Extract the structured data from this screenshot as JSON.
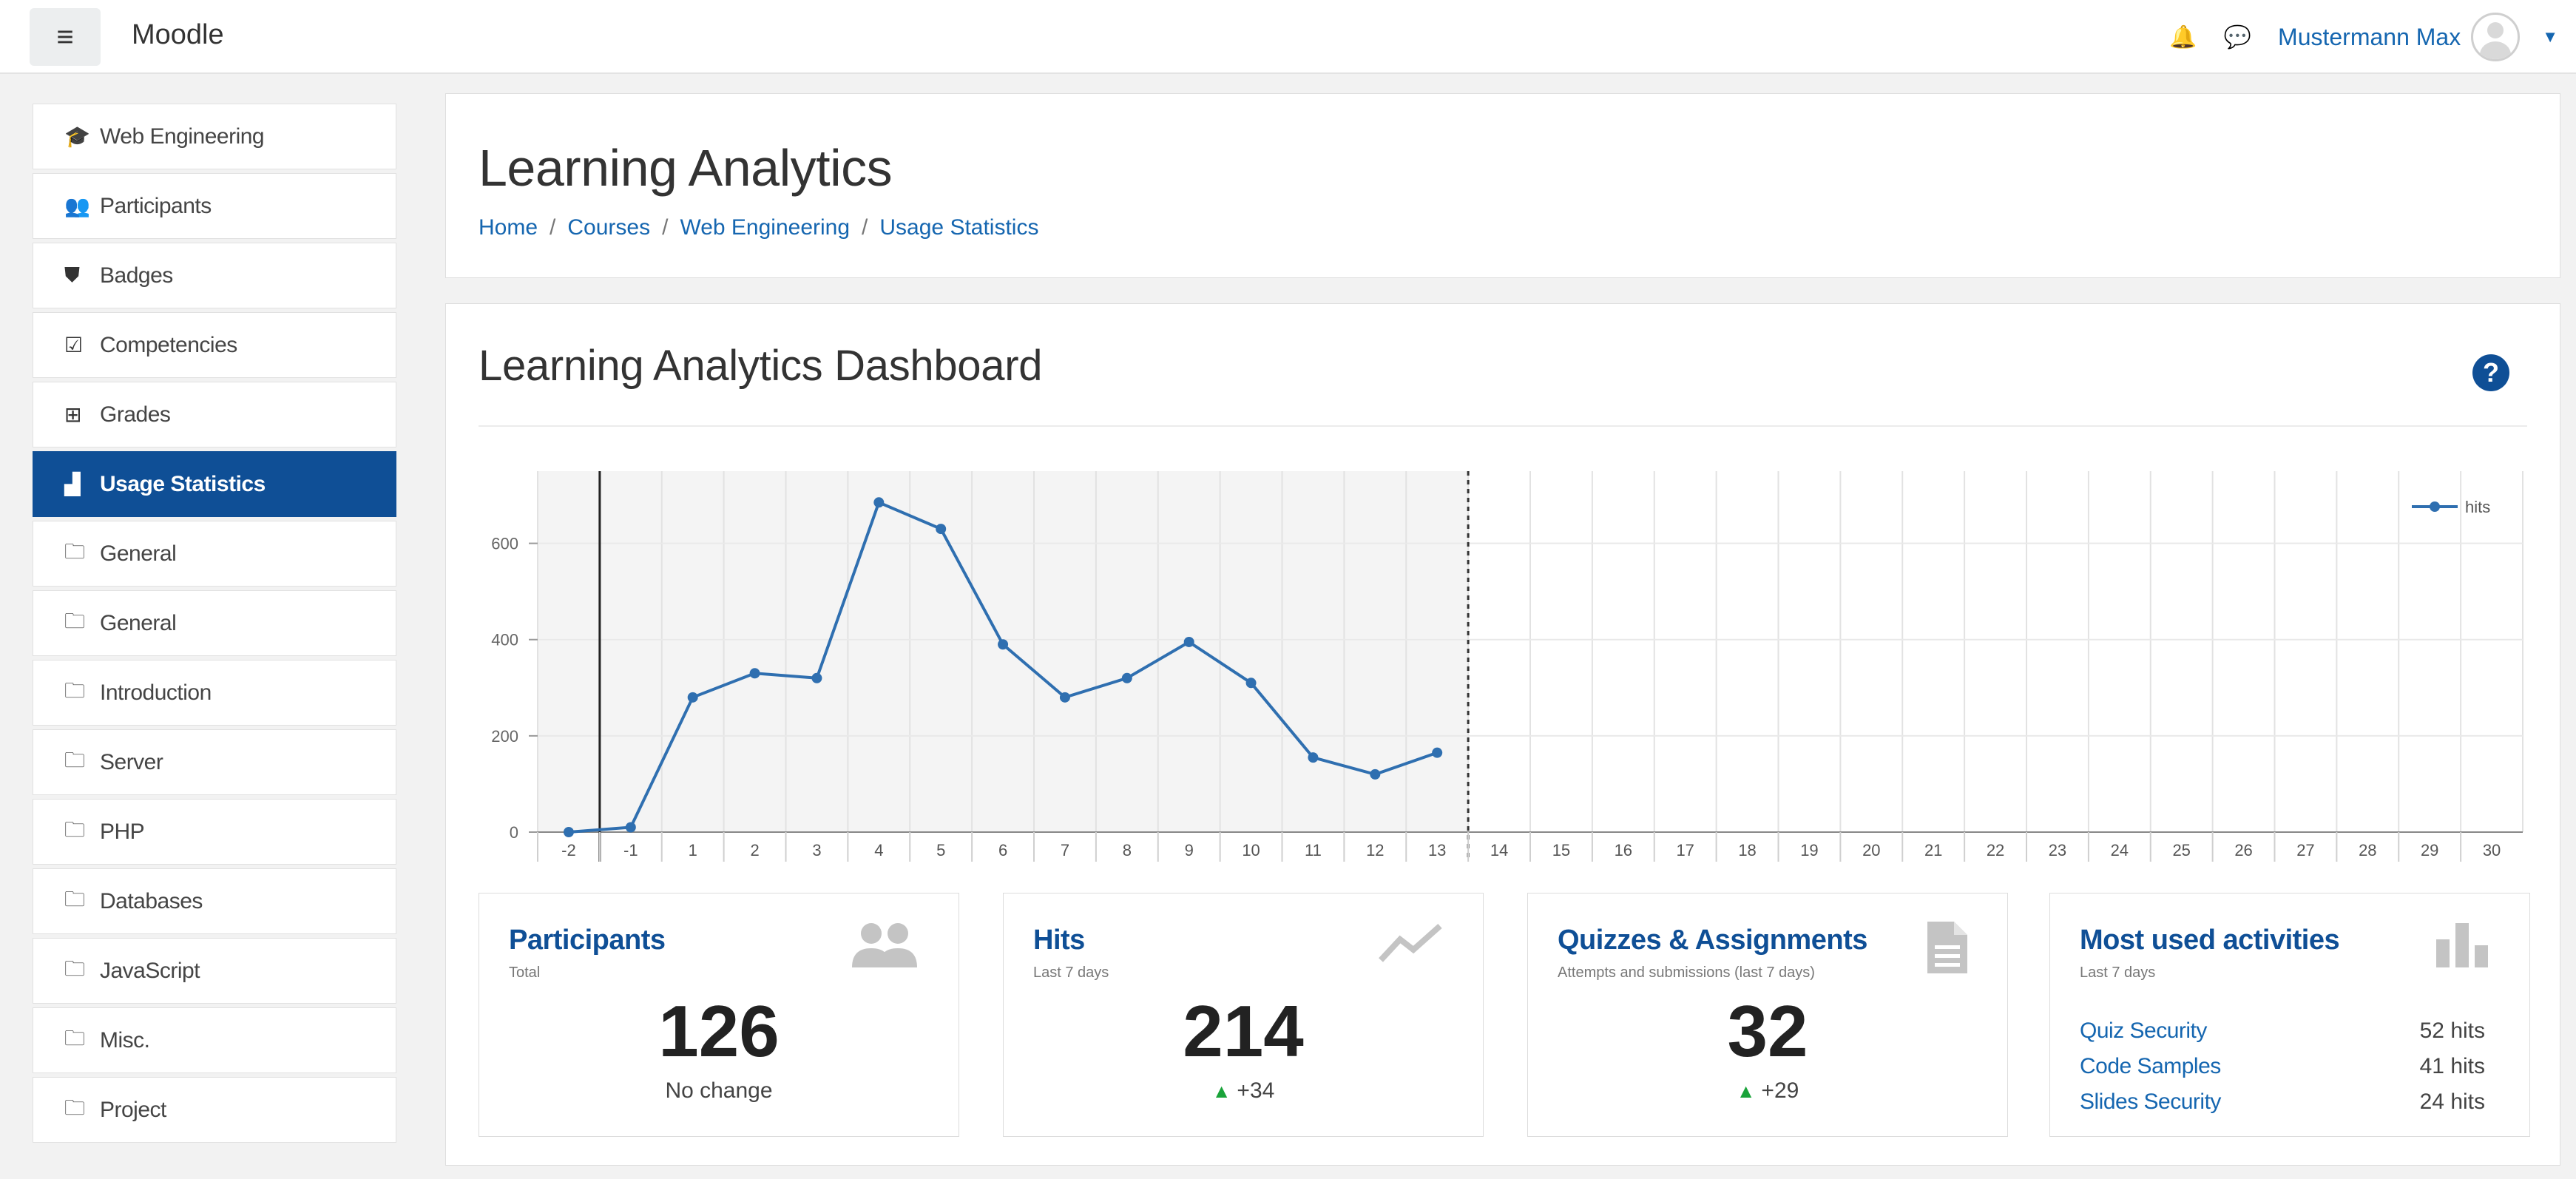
{
  "navbar": {
    "menu_icon": "hamburger-icon",
    "brand": "Moodle",
    "notification_icon": "bell-icon",
    "message_icon": "chat-bubble-icon",
    "user_name": "Mustermann Max"
  },
  "sidebar": {
    "items": [
      {
        "label": "Web Engineering",
        "icon": "graduation-cap-icon",
        "glyph": "🎓",
        "active": false
      },
      {
        "label": "Participants",
        "icon": "users-icon",
        "glyph": "👥",
        "active": false
      },
      {
        "label": "Badges",
        "icon": "shield-icon",
        "glyph": "⛊",
        "active": false
      },
      {
        "label": "Competencies",
        "icon": "check-square-icon",
        "glyph": "☑",
        "active": false
      },
      {
        "label": "Grades",
        "icon": "table-icon",
        "glyph": "⊞",
        "active": false
      },
      {
        "label": "Usage Statistics",
        "icon": "area-chart-icon",
        "glyph": "▟",
        "active": true
      },
      {
        "label": "General",
        "icon": "folder-icon",
        "glyph": "🗀",
        "active": false
      },
      {
        "label": "General",
        "icon": "folder-icon",
        "glyph": "🗀",
        "active": false
      },
      {
        "label": "Introduction",
        "icon": "folder-icon",
        "glyph": "🗀",
        "active": false
      },
      {
        "label": "Server",
        "icon": "folder-icon",
        "glyph": "🗀",
        "active": false
      },
      {
        "label": "PHP",
        "icon": "folder-icon",
        "glyph": "🗀",
        "active": false
      },
      {
        "label": "Databases",
        "icon": "folder-icon",
        "glyph": "🗀",
        "active": false
      },
      {
        "label": "JavaScript",
        "icon": "folder-icon",
        "glyph": "🗀",
        "active": false
      },
      {
        "label": "Misc.",
        "icon": "folder-icon",
        "glyph": "🗀",
        "active": false
      },
      {
        "label": "Project",
        "icon": "folder-icon",
        "glyph": "🗀",
        "active": false
      }
    ]
  },
  "header": {
    "title": "Learning Analytics",
    "breadcrumb": [
      "Home",
      "Courses",
      "Web Engineering",
      "Usage Statistics"
    ],
    "breadcrumb_separator": "/"
  },
  "dashboard": {
    "title": "Learning Analytics Dashboard",
    "help_icon": "question-circle-icon",
    "help_glyph": "?"
  },
  "chart_data": {
    "type": "line",
    "title": "",
    "xlabel": "",
    "ylabel": "",
    "x": [
      -2,
      -1,
      1,
      2,
      3,
      4,
      5,
      6,
      7,
      8,
      9,
      10,
      11,
      12,
      13,
      14,
      15,
      16,
      17,
      18,
      19,
      20,
      21,
      22,
      23,
      24,
      25,
      26,
      27,
      28,
      29,
      30
    ],
    "series": [
      {
        "name": "hits",
        "color": "#2f6fb0",
        "values": [
          0,
          10,
          280,
          330,
          320,
          685,
          630,
          390,
          280,
          320,
          395,
          310,
          155,
          120,
          165,
          null,
          null,
          null,
          null,
          null,
          null,
          null,
          null,
          null,
          null,
          null,
          null,
          null,
          null,
          null,
          null,
          null
        ]
      }
    ],
    "yticks": [
      0,
      200,
      400,
      600
    ],
    "ylim": [
      0,
      750
    ],
    "grid": true,
    "shaded_range": [
      -2,
      13
    ],
    "current_marker_x": -1,
    "legend_position": "top-right"
  },
  "stats": [
    {
      "title": "Participants",
      "subtitle": "Total",
      "icon": "users-icon",
      "value": "126",
      "change": "No change",
      "change_arrow": false
    },
    {
      "title": "Hits",
      "subtitle": "Last 7 days",
      "icon": "line-chart-icon",
      "value": "214",
      "change": "+34",
      "change_arrow": true
    },
    {
      "title": "Quizzes & Assignments",
      "subtitle": "Attempts and submissions (last 7 days)",
      "icon": "file-icon",
      "value": "32",
      "change": "+29",
      "change_arrow": true
    },
    {
      "title": "Most used activities",
      "subtitle": "Last 7 days",
      "icon": "bar-chart-icon",
      "activities": [
        {
          "name": "Quiz Security",
          "hits": "52 hits"
        },
        {
          "name": "Code Samples",
          "hits": "41 hits"
        },
        {
          "name": "Slides Security",
          "hits": "24 hits"
        }
      ]
    }
  ],
  "colors": {
    "primary": "#0f4f96",
    "link": "#1566b0",
    "line": "#2f6fb0",
    "up": "#1aa33a"
  }
}
